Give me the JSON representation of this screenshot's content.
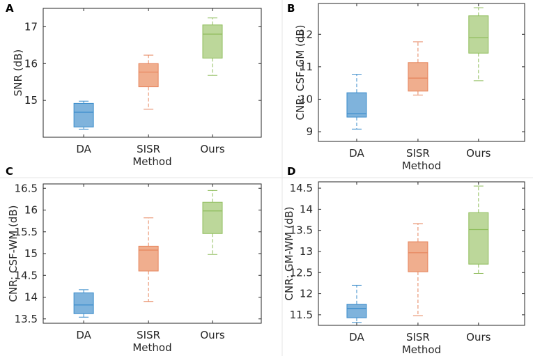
{
  "chart_data": [
    {
      "panel": "A",
      "type": "box",
      "categories": [
        "DA",
        "SISR",
        "Ours"
      ],
      "xlabel": "Method",
      "ylabel": "SNR (dB)",
      "ylim": [
        14.0,
        17.5
      ],
      "yticks": [
        15,
        16,
        17
      ],
      "ytick_labels": [
        "15",
        "16",
        "17"
      ],
      "boxes": [
        {
          "whisker_low": 14.22,
          "q1": 14.28,
          "median": 14.68,
          "q3": 14.92,
          "whisker_high": 14.98
        },
        {
          "whisker_low": 14.76,
          "q1": 15.37,
          "median": 15.77,
          "q3": 16.0,
          "whisker_high": 16.23
        },
        {
          "whisker_low": 15.68,
          "q1": 16.15,
          "median": 16.8,
          "q3": 17.05,
          "whisker_high": 17.24
        }
      ]
    },
    {
      "panel": "B",
      "type": "box",
      "categories": [
        "DA",
        "SISR",
        "Ours"
      ],
      "xlabel": "Method",
      "ylabel": "CNR: CSF-GM (dB)",
      "ylim": [
        8.7,
        12.95
      ],
      "yticks": [
        9,
        10,
        11,
        12
      ],
      "ytick_labels": [
        "9",
        "10",
        "11",
        "12"
      ],
      "boxes": [
        {
          "whisker_low": 9.08,
          "q1": 9.45,
          "median": 9.55,
          "q3": 10.2,
          "whisker_high": 10.77
        },
        {
          "whisker_low": 10.13,
          "q1": 10.25,
          "median": 10.65,
          "q3": 11.13,
          "whisker_high": 11.77
        },
        {
          "whisker_low": 10.57,
          "q1": 11.42,
          "median": 11.9,
          "q3": 12.57,
          "whisker_high": 12.82
        }
      ]
    },
    {
      "panel": "C",
      "type": "box",
      "categories": [
        "DA",
        "SISR",
        "Ours"
      ],
      "xlabel": "Method",
      "ylabel": "CNR: CSF-WM (dB)",
      "ylim": [
        13.4,
        16.6
      ],
      "yticks": [
        13.5,
        14,
        14.5,
        15,
        15.5,
        16,
        16.5
      ],
      "ytick_labels": [
        "13.5",
        "14",
        "14.5",
        "15",
        "15.5",
        "16",
        "16.5"
      ],
      "boxes": [
        {
          "whisker_low": 13.54,
          "q1": 13.62,
          "median": 13.82,
          "q3": 14.1,
          "whisker_high": 14.17
        },
        {
          "whisker_low": 13.9,
          "q1": 14.6,
          "median": 15.08,
          "q3": 15.17,
          "whisker_high": 15.82
        },
        {
          "whisker_low": 14.98,
          "q1": 15.46,
          "median": 15.98,
          "q3": 16.18,
          "whisker_high": 16.45
        }
      ]
    },
    {
      "panel": "D",
      "type": "box",
      "categories": [
        "DA",
        "SISR",
        "Ours"
      ],
      "xlabel": "Method",
      "ylabel": "CNR: GM-WM (dB)",
      "ylim": [
        11.25,
        14.65
      ],
      "yticks": [
        11.5,
        12,
        12.5,
        13,
        13.5,
        14,
        14.5
      ],
      "ytick_labels": [
        "11.5",
        "12",
        "12.5",
        "13",
        "13.5",
        "14",
        "14.5"
      ],
      "boxes": [
        {
          "whisker_low": 11.32,
          "q1": 11.43,
          "median": 11.65,
          "q3": 11.75,
          "whisker_high": 12.2
        },
        {
          "whisker_low": 11.48,
          "q1": 12.52,
          "median": 12.97,
          "q3": 13.23,
          "whisker_high": 13.66
        },
        {
          "whisker_low": 12.48,
          "q1": 12.7,
          "median": 13.52,
          "q3": 13.92,
          "whisker_high": 14.55
        }
      ]
    }
  ],
  "colors": {
    "DA": {
      "fill": "#7fb3dc",
      "stroke": "#3a8ccb"
    },
    "SISR": {
      "fill": "#f0ae8e",
      "stroke": "#e6845c"
    },
    "Ours": {
      "fill": "#bcd79a",
      "stroke": "#8fbd5c"
    }
  }
}
